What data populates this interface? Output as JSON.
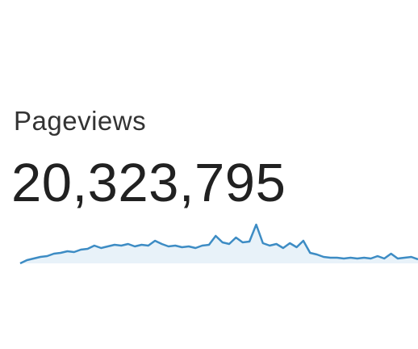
{
  "label": "Pageviews",
  "value": "20,323,795",
  "chart_data": {
    "type": "area",
    "color": "#3d8cc4",
    "fill": "#e8f2f9",
    "ylim": [
      0,
      50
    ],
    "values": [
      0,
      4,
      6,
      8,
      9,
      12,
      13,
      15,
      14,
      17,
      18,
      22,
      19,
      21,
      23,
      22,
      24,
      21,
      23,
      22,
      28,
      24,
      21,
      22,
      20,
      21,
      19,
      22,
      23,
      34,
      26,
      24,
      32,
      26,
      27,
      48,
      25,
      22,
      24,
      19,
      25,
      20,
      28,
      13,
      11,
      8,
      7,
      7,
      6,
      7,
      6,
      7,
      6,
      9,
      6,
      12,
      6,
      7,
      8,
      5
    ]
  }
}
